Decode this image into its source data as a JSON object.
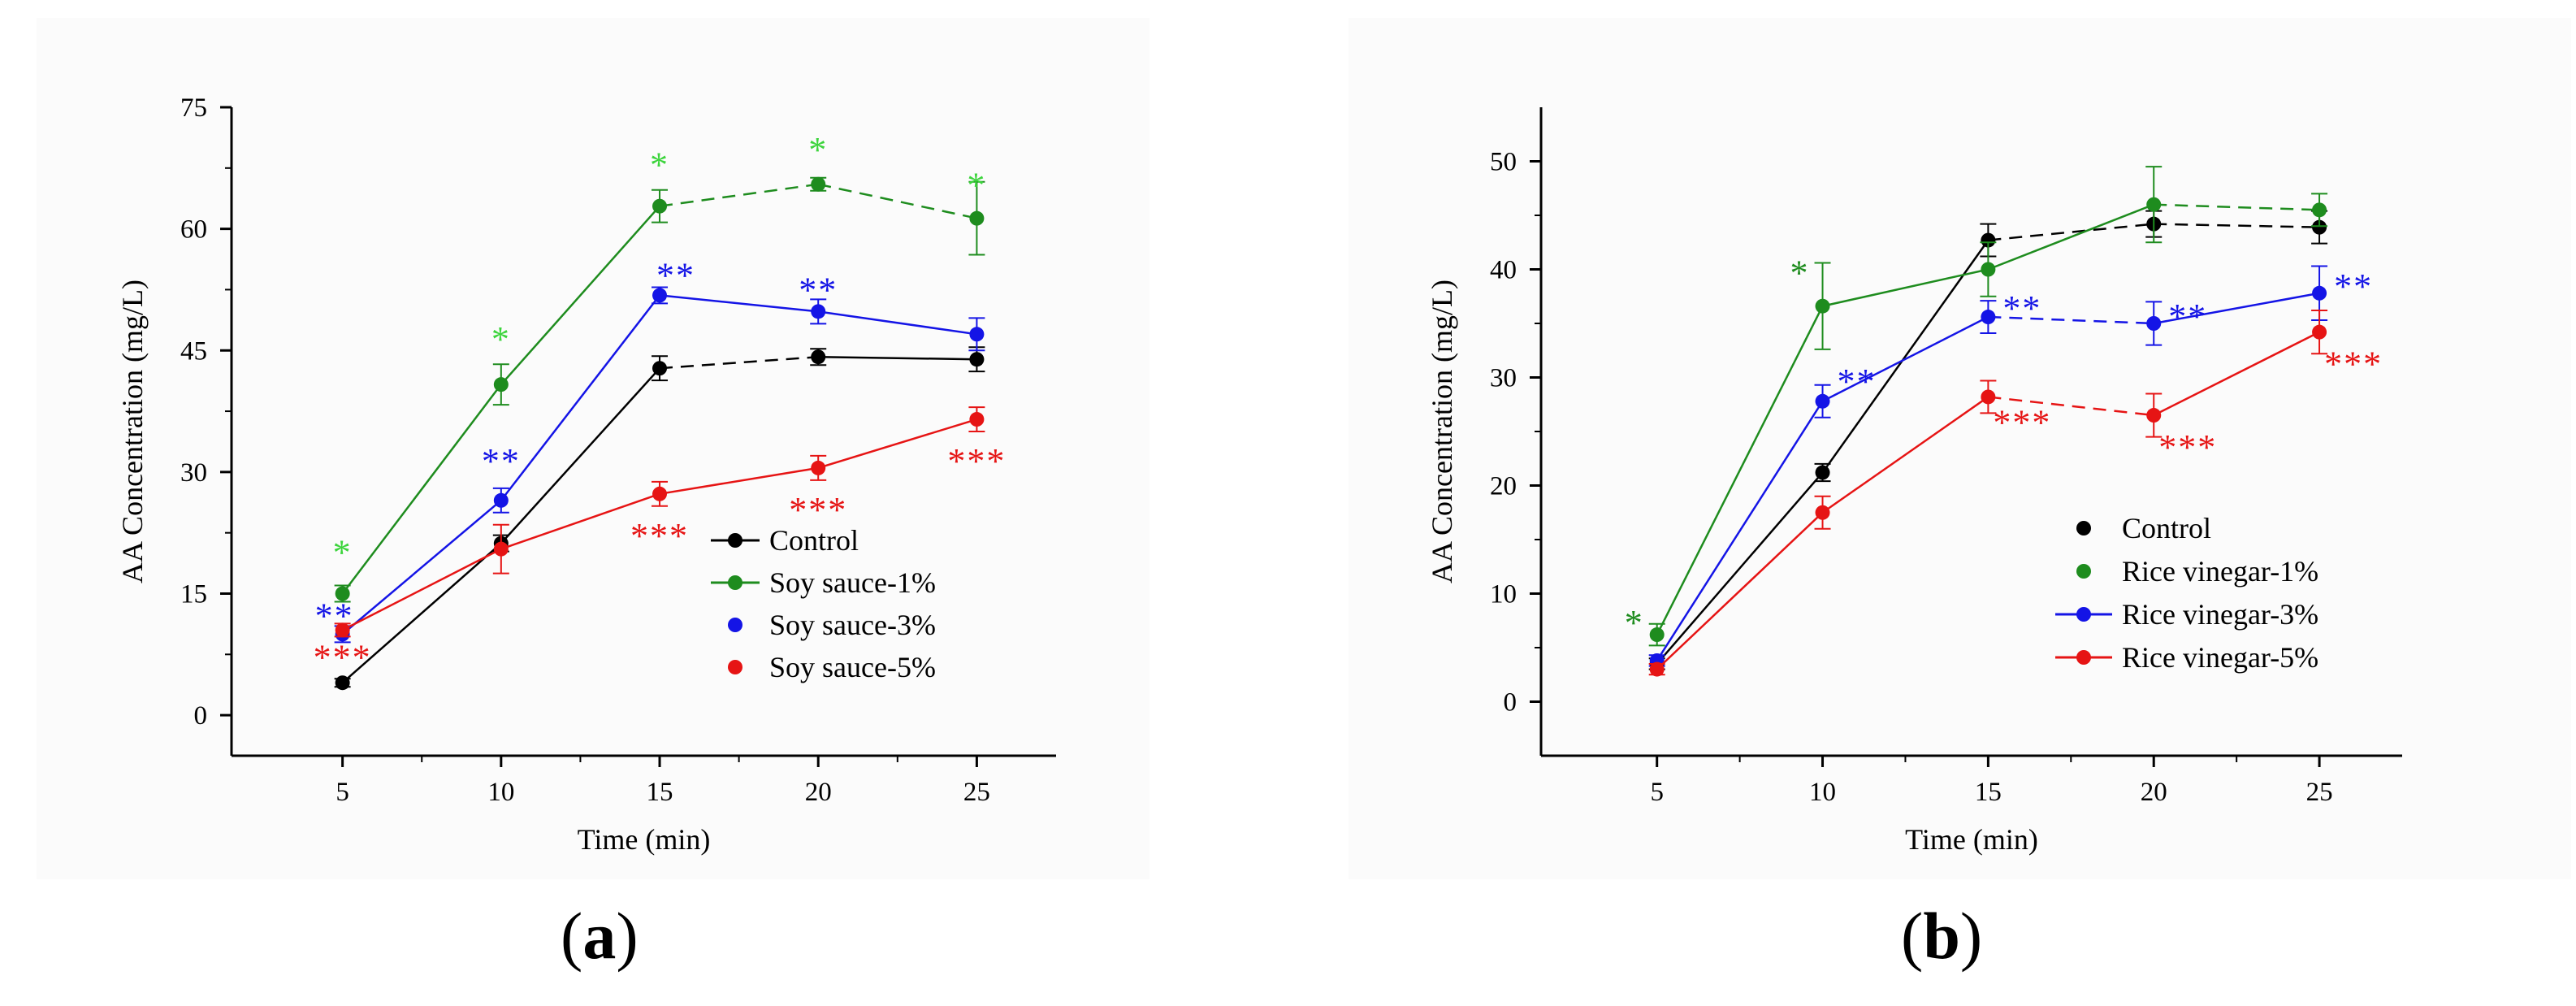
{
  "panels": [
    {
      "label": "a",
      "chart_data": {
        "type": "line",
        "xlabel": "Time (min)",
        "ylabel": "AA Concentration (mg/L)",
        "x": [
          5,
          10,
          15,
          20,
          25
        ],
        "xticks": [
          "5",
          "10",
          "15",
          "20",
          "25"
        ],
        "xlim": [
          1.5,
          27.5
        ],
        "ylim": [
          -5,
          75
        ],
        "yticks": [
          "0",
          "15",
          "30",
          "45",
          "60",
          "75"
        ],
        "ytick_values": [
          0,
          15,
          30,
          45,
          60,
          75
        ],
        "legend_position": "lower-right",
        "series": [
          {
            "name": "Control",
            "color": "#000000",
            "values": [
              4,
              21.2,
              42.8,
              44.2,
              43.9
            ],
            "errors": [
              0.5,
              1.0,
              1.5,
              1.0,
              1.5
            ],
            "line_styles": [
              "solid",
              "solid",
              "dashed",
              "solid"
            ],
            "legend_style": "line",
            "annotations": [
              "",
              "",
              "",
              "",
              ""
            ]
          },
          {
            "name": "Soy sauce-1%",
            "color": "#1e8c1e",
            "values": [
              15,
              40.8,
              62.8,
              65.5,
              61.3
            ],
            "errors": [
              1.0,
              2.5,
              2.0,
              0.8,
              4.5
            ],
            "line_styles": [
              "solid",
              "solid",
              "dashed",
              "dashed"
            ],
            "legend_style": "line",
            "annotation_color": "#3cd43c",
            "annotations": [
              "*",
              "*",
              "*",
              "*",
              "*"
            ]
          },
          {
            "name": "Soy sauce-3%",
            "color": "#1414e6",
            "values": [
              10,
              26.5,
              51.8,
              49.8,
              47
            ],
            "errors": [
              1.0,
              1.5,
              1.0,
              1.5,
              2.0
            ],
            "line_styles": [
              "solid",
              "solid",
              "solid",
              "solid"
            ],
            "legend_style": "marker",
            "annotation_color": "#1414e6",
            "annotations": [
              "**",
              "**",
              "**",
              "**",
              ""
            ]
          },
          {
            "name": "Soy sauce-5%",
            "color": "#e61414",
            "values": [
              10.5,
              20.5,
              27.3,
              30.5,
              36.5
            ],
            "errors": [
              0.8,
              3.0,
              1.5,
              1.5,
              1.5
            ],
            "line_styles": [
              "solid",
              "solid",
              "solid",
              "solid"
            ],
            "legend_style": "marker",
            "annotation_color": "#e61414",
            "annotations": [
              "***",
              "",
              "***",
              "***",
              "***"
            ]
          }
        ]
      }
    },
    {
      "label": "b",
      "chart_data": {
        "type": "line",
        "xlabel": "Time (min)",
        "ylabel": "AA Concentration (mg/L)",
        "x": [
          5,
          10,
          15,
          20,
          25
        ],
        "xticks": [
          "5",
          "10",
          "15",
          "20",
          "25"
        ],
        "xlim": [
          1.5,
          27.5
        ],
        "ylim": [
          -5,
          55
        ],
        "yticks": [
          "0",
          "10",
          "20",
          "30",
          "40",
          "50"
        ],
        "ytick_values": [
          0,
          10,
          20,
          30,
          40,
          50
        ],
        "legend_position": "lower-right",
        "series": [
          {
            "name": "Control",
            "color": "#000000",
            "values": [
              3.5,
              21.2,
              42.7,
              44.2,
              43.9
            ],
            "errors": [
              0.5,
              0.8,
              1.5,
              1.2,
              1.5
            ],
            "line_styles": [
              "solid",
              "solid",
              "dashed",
              "dashed"
            ],
            "legend_style": "marker",
            "annotations": [
              "",
              "",
              "",
              "",
              ""
            ]
          },
          {
            "name": "Rice vinegar-1%",
            "color": "#1e8c1e",
            "values": [
              6.2,
              36.6,
              40,
              46,
              45.5
            ],
            "errors": [
              1.0,
              4.0,
              2.5,
              3.5,
              1.5
            ],
            "line_styles": [
              "solid",
              "solid",
              "solid",
              "dashed"
            ],
            "legend_style": "marker",
            "annotation_color": "#1e8c1e",
            "annotations": [
              "*",
              "*",
              "",
              "",
              ""
            ]
          },
          {
            "name": "Rice vinegar-3%",
            "color": "#1414e6",
            "values": [
              3.8,
              27.8,
              35.6,
              35,
              37.8
            ],
            "errors": [
              0.5,
              1.5,
              1.5,
              2.0,
              2.5
            ],
            "line_styles": [
              "solid",
              "solid",
              "dashed",
              "solid"
            ],
            "legend_style": "line",
            "annotation_color": "#1414e6",
            "annotations": [
              "",
              "**",
              "**",
              "**",
              "**"
            ]
          },
          {
            "name": "Rice vinegar-5%",
            "color": "#e61414",
            "values": [
              3,
              17.5,
              28.2,
              26.5,
              34.2
            ],
            "errors": [
              0.5,
              1.5,
              1.5,
              2.0,
              2.0
            ],
            "line_styles": [
              "solid",
              "solid",
              "dashed",
              "solid"
            ],
            "legend_style": "line",
            "annotation_color": "#e61414",
            "annotations": [
              "",
              "",
              "***",
              "***",
              "***"
            ]
          }
        ]
      }
    }
  ]
}
